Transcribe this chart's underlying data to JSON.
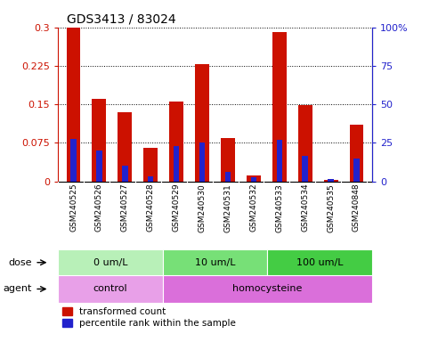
{
  "title": "GDS3413 / 83024",
  "samples": [
    "GSM240525",
    "GSM240526",
    "GSM240527",
    "GSM240528",
    "GSM240529",
    "GSM240530",
    "GSM240531",
    "GSM240532",
    "GSM240533",
    "GSM240534",
    "GSM240535",
    "GSM240848"
  ],
  "red_values": [
    0.3,
    0.16,
    0.135,
    0.065,
    0.155,
    0.228,
    0.085,
    0.012,
    0.29,
    0.148,
    0.003,
    0.11
  ],
  "blue_values": [
    0.082,
    0.06,
    0.03,
    0.01,
    0.068,
    0.075,
    0.018,
    0.008,
    0.08,
    0.05,
    0.005,
    0.045
  ],
  "ylim_left": [
    0,
    0.3
  ],
  "ylim_right": [
    0,
    100
  ],
  "yticks_left": [
    0,
    0.075,
    0.15,
    0.225,
    0.3
  ],
  "yticks_right": [
    0,
    25,
    50,
    75,
    100
  ],
  "ytick_labels_left": [
    "0",
    "0.075",
    "0.15",
    "0.225",
    "0.3"
  ],
  "ytick_labels_right": [
    "0",
    "25",
    "50",
    "75",
    "100%"
  ],
  "dose_groups": [
    {
      "label": "0 um/L",
      "start": 0,
      "end": 4
    },
    {
      "label": "10 um/L",
      "start": 4,
      "end": 8
    },
    {
      "label": "100 um/L",
      "start": 8,
      "end": 12
    }
  ],
  "dose_colors": [
    "#b8f0b8",
    "#77e077",
    "#44cc44"
  ],
  "agent_groups": [
    {
      "label": "control",
      "start": 0,
      "end": 4
    },
    {
      "label": "homocysteine",
      "start": 4,
      "end": 12
    }
  ],
  "agent_colors": [
    "#e8a0e8",
    "#da6fda"
  ],
  "bar_color_red": "#cc1100",
  "bar_color_blue": "#2222cc",
  "bar_width": 0.55,
  "blue_bar_width": 0.22,
  "bg_color": "#ffffff",
  "sample_label_bg": "#c8c8c8",
  "legend_red_label": "transformed count",
  "legend_blue_label": "percentile rank within the sample",
  "dose_label": "dose",
  "agent_label": "agent"
}
